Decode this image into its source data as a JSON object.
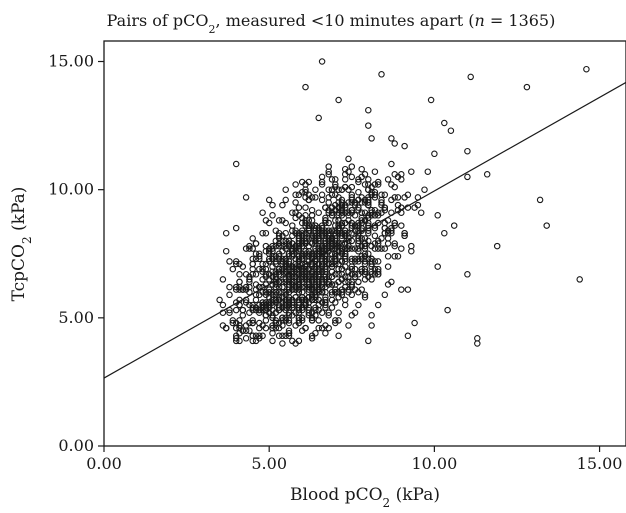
{
  "chart_data": {
    "type": "scatter",
    "title": {
      "prefix": "Pairs of pCO",
      "sub": "2",
      "middle": ", measured <10 minutes apart (",
      "n_symbol": "n",
      "suffix": " = 1365)"
    },
    "xlabel": {
      "prefix": "Blood pCO",
      "sub": "2",
      "suffix": " (kPa)"
    },
    "ylabel": {
      "prefix": "TcpCO",
      "sub": "2",
      "suffix": " (kPa)"
    },
    "x_ticks": [
      {
        "value": 0,
        "label": "0.00"
      },
      {
        "value": 5,
        "label": "5.00"
      },
      {
        "value": 10,
        "label": "10.00"
      },
      {
        "value": 15,
        "label": "15.00"
      }
    ],
    "y_ticks": [
      {
        "value": 0,
        "label": "0.00"
      },
      {
        "value": 5,
        "label": "5.00"
      },
      {
        "value": 10,
        "label": "10.00"
      },
      {
        "value": 15,
        "label": "15.00"
      }
    ],
    "xlim": [
      0,
      15.8
    ],
    "ylim": [
      0,
      15.8
    ],
    "grid": false,
    "legend": "none",
    "n": 1365,
    "fit_line": {
      "slope": 0.73,
      "intercept": 2.65
    },
    "outliers": [
      [
        8.4,
        14.5
      ],
      [
        6.6,
        15.0
      ],
      [
        11.1,
        14.4
      ],
      [
        12.8,
        14.0
      ],
      [
        14.6,
        14.7
      ],
      [
        6.1,
        14.0
      ],
      [
        7.1,
        13.5
      ],
      [
        9.9,
        13.5
      ],
      [
        8.0,
        13.1
      ],
      [
        8.0,
        12.5
      ],
      [
        10.3,
        12.6
      ],
      [
        10.5,
        12.3
      ],
      [
        6.5,
        12.8
      ],
      [
        4.0,
        11.0
      ],
      [
        11.0,
        11.5
      ],
      [
        11.6,
        10.6
      ],
      [
        11.0,
        10.5
      ],
      [
        9.2,
        4.3
      ],
      [
        10.4,
        5.3
      ],
      [
        11.3,
        4.2
      ],
      [
        11.3,
        4.0
      ],
      [
        11.9,
        7.8
      ],
      [
        11.0,
        6.7
      ],
      [
        13.4,
        8.6
      ],
      [
        14.4,
        6.5
      ],
      [
        13.2,
        9.6
      ],
      [
        10.1,
        7.0
      ],
      [
        9.0,
        6.1
      ],
      [
        3.6,
        4.7
      ],
      [
        3.6,
        6.5
      ],
      [
        4.1,
        4.1
      ],
      [
        8.0,
        4.1
      ],
      [
        9.4,
        4.8
      ],
      [
        10.6,
        8.6
      ],
      [
        10.1,
        9.0
      ],
      [
        10.3,
        8.3
      ]
    ],
    "cluster": {
      "n": 1329,
      "center": [
        6.3,
        7.1
      ],
      "sd_x": 1.25,
      "sd_y": 1.6,
      "correlation": 0.55,
      "x_range": [
        3.5,
        10.4
      ],
      "y_range": [
        4.0,
        12.4
      ],
      "seed": 1365
    }
  }
}
